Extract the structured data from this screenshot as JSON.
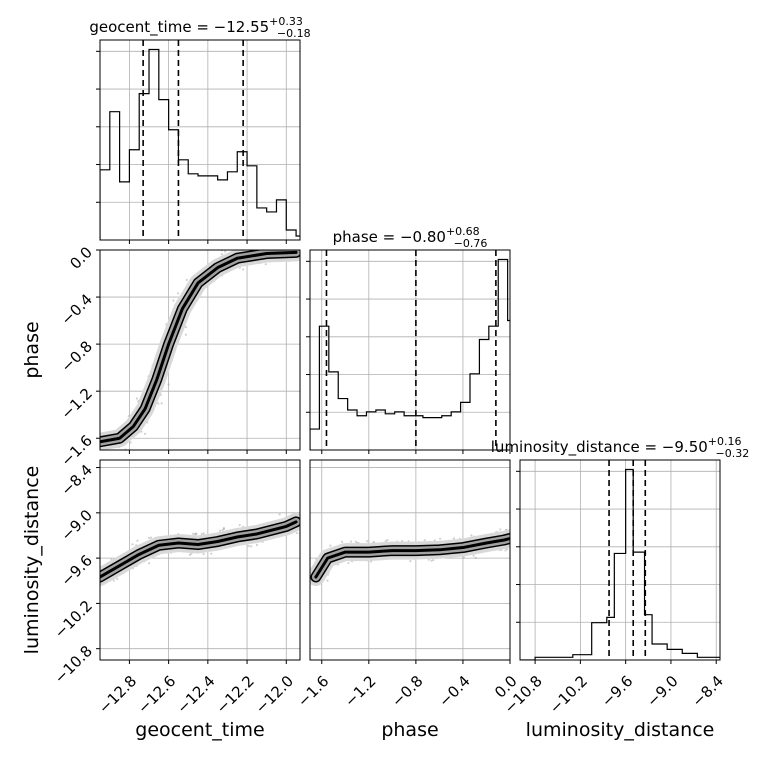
{
  "figure": {
    "type": "corner-plot"
  },
  "chart_data": [
    {
      "type": "histogram",
      "panel": "geocent_time-1d",
      "title": {
        "main": "geocent_time = −12.55",
        "sup": "+0.33",
        "sub": "−0.18"
      },
      "xlim": [
        -12.95,
        -11.93
      ],
      "xticks": [
        -12.8,
        -12.6,
        -12.4,
        -12.2,
        -12.0
      ],
      "quantiles": [
        -12.73,
        -12.55,
        -12.22
      ],
      "bin_edges": [
        -12.95,
        -12.9,
        -12.85,
        -12.8,
        -12.75,
        -12.7,
        -12.65,
        -12.6,
        -12.55,
        -12.5,
        -12.45,
        -12.4,
        -12.35,
        -12.3,
        -12.25,
        -12.2,
        -12.15,
        -12.1,
        -12.05,
        -12.0,
        -11.95,
        -11.93
      ],
      "counts": [
        0.35,
        0.64,
        0.29,
        0.45,
        0.73,
        0.95,
        0.7,
        0.55,
        0.4,
        0.33,
        0.32,
        0.32,
        0.3,
        0.34,
        0.44,
        0.37,
        0.16,
        0.14,
        0.2,
        0.05,
        0.02
      ],
      "grid": true
    },
    {
      "type": "histogram",
      "panel": "phase-1d",
      "title": {
        "main": "phase = −0.80",
        "sup": "+0.68",
        "sub": "−0.76"
      },
      "xlim": [
        -1.7,
        0.0
      ],
      "xticks": [
        -1.6,
        -1.2,
        -0.8,
        -0.4,
        0.0
      ],
      "quantiles": [
        -1.56,
        -0.8,
        -0.12
      ],
      "bin_edges": [
        -1.7,
        -1.62,
        -1.54,
        -1.46,
        -1.38,
        -1.3,
        -1.22,
        -1.14,
        -1.06,
        -0.98,
        -0.9,
        -0.82,
        -0.74,
        -0.66,
        -0.58,
        -0.5,
        -0.42,
        -0.34,
        -0.26,
        -0.18,
        -0.1,
        -0.02,
        0.0
      ],
      "counts": [
        0.11,
        0.65,
        0.41,
        0.27,
        0.21,
        0.18,
        0.2,
        0.21,
        0.19,
        0.2,
        0.18,
        0.18,
        0.17,
        0.17,
        0.18,
        0.2,
        0.25,
        0.4,
        0.58,
        0.65,
        1.0,
        0.68
      ],
      "grid": true
    },
    {
      "type": "histogram",
      "panel": "luminosity_distance-1d",
      "title": {
        "main": "luminosity_distance = −9.50",
        "sup": "+0.16",
        "sub": "−0.32"
      },
      "xlim": [
        -11.0,
        -8.35
      ],
      "xticks": [
        -10.8,
        -10.2,
        -9.6,
        -9.0,
        -8.4
      ],
      "quantiles": [
        -9.82,
        -9.5,
        -9.34
      ],
      "bin_edges": [
        -11.0,
        -10.8,
        -10.55,
        -10.3,
        -10.05,
        -9.85,
        -9.75,
        -9.6,
        -9.5,
        -9.35,
        -9.25,
        -9.05,
        -8.85,
        -8.65,
        -8.45,
        -8.35
      ],
      "counts": [
        0.0,
        0.02,
        0.02,
        0.04,
        0.28,
        0.32,
        0.8,
        1.43,
        0.81,
        0.34,
        0.12,
        0.08,
        0.05,
        0.02,
        0.02
      ],
      "grid": true
    },
    {
      "type": "contour-2d",
      "panel": "phase-vs-geocent_time",
      "xlim": [
        -12.95,
        -11.93
      ],
      "ylim": [
        -1.7,
        0.0
      ],
      "xticks": [
        -12.8,
        -12.6,
        -12.4,
        -12.2,
        -12.0
      ],
      "yticks": [
        0.0,
        -0.4,
        -0.8,
        -1.2,
        -1.6
      ],
      "xlabel": "",
      "ylabel": "phase",
      "ridge": [
        [
          -12.95,
          -1.63
        ],
        [
          -12.85,
          -1.6
        ],
        [
          -12.78,
          -1.5
        ],
        [
          -12.72,
          -1.35
        ],
        [
          -12.66,
          -1.1
        ],
        [
          -12.6,
          -0.8
        ],
        [
          -12.53,
          -0.5
        ],
        [
          -12.45,
          -0.28
        ],
        [
          -12.35,
          -0.15
        ],
        [
          -12.25,
          -0.07
        ],
        [
          -12.1,
          -0.03
        ],
        [
          -11.95,
          -0.02
        ]
      ],
      "grid": true
    },
    {
      "type": "contour-2d",
      "panel": "luminosity_distance-vs-geocent_time",
      "xlim": [
        -12.95,
        -11.93
      ],
      "ylim": [
        -10.95,
        -8.3
      ],
      "xticks": [
        -12.8,
        -12.6,
        -12.4,
        -12.2,
        -12.0
      ],
      "yticks": [
        -8.4,
        -9.0,
        -9.6,
        -10.2,
        -10.8
      ],
      "xlabel": "geocent_time",
      "ylabel": "luminosity_distance",
      "ridge": [
        [
          -12.95,
          -9.85
        ],
        [
          -12.85,
          -9.7
        ],
        [
          -12.75,
          -9.55
        ],
        [
          -12.65,
          -9.43
        ],
        [
          -12.55,
          -9.4
        ],
        [
          -12.45,
          -9.42
        ],
        [
          -12.35,
          -9.38
        ],
        [
          -12.25,
          -9.32
        ],
        [
          -12.15,
          -9.28
        ],
        [
          -12.0,
          -9.18
        ],
        [
          -11.95,
          -9.12
        ]
      ],
      "grid": true
    },
    {
      "type": "contour-2d",
      "panel": "luminosity_distance-vs-phase",
      "xlim": [
        -1.7,
        0.0
      ],
      "ylim": [
        -10.95,
        -8.3
      ],
      "xticks": [
        -1.6,
        -1.2,
        -0.8,
        -0.4,
        0.0
      ],
      "yticks": [],
      "xlabel": "phase",
      "ylabel": "",
      "ridge": [
        [
          -1.65,
          -9.85
        ],
        [
          -1.55,
          -9.6
        ],
        [
          -1.4,
          -9.52
        ],
        [
          -1.2,
          -9.52
        ],
        [
          -1.0,
          -9.5
        ],
        [
          -0.8,
          -9.5
        ],
        [
          -0.6,
          -9.49
        ],
        [
          -0.4,
          -9.46
        ],
        [
          -0.2,
          -9.4
        ],
        [
          -0.05,
          -9.36
        ],
        [
          0.0,
          -9.34
        ]
      ],
      "grid": true
    }
  ]
}
